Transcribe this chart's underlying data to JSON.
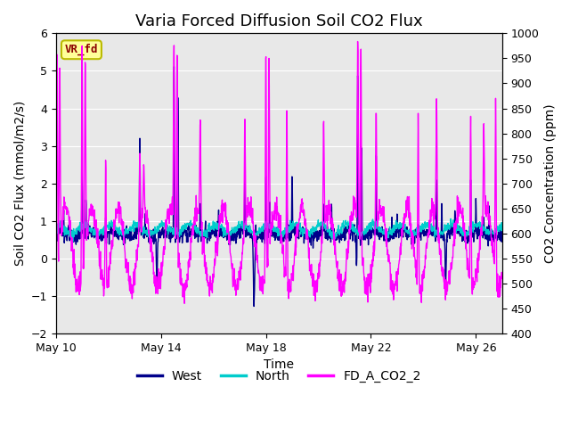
{
  "title": "Varia Forced Diffusion Soil CO2 Flux",
  "xlabel": "Time",
  "ylabel_left": "Soil CO2 Flux (mmol/m2/s)",
  "ylabel_right": "CO2 Concentration (ppm)",
  "ylim_left": [
    -2.0,
    6.0
  ],
  "ylim_right": [
    400,
    1000
  ],
  "yticks_left": [
    -2.0,
    -1.0,
    0.0,
    1.0,
    2.0,
    3.0,
    4.0,
    5.0,
    6.0
  ],
  "yticks_right": [
    400,
    450,
    500,
    550,
    600,
    650,
    700,
    750,
    800,
    850,
    900,
    950,
    1000
  ],
  "xtick_labels": [
    "May 10",
    "May 14",
    "May 18",
    "May 22",
    "May 26"
  ],
  "xtick_positions": [
    0,
    4,
    8,
    12,
    16
  ],
  "color_west": "#00008B",
  "color_north": "#00CCCC",
  "color_co2": "#FF00FF",
  "bg_color": "#E8E8E8",
  "label_box_text": "VR_fd",
  "label_box_facecolor": "#FFFF99",
  "label_box_edgecolor": "#BBBB00",
  "label_box_textcolor": "#8B0000",
  "legend_labels": [
    "West",
    "North",
    "FD_A_CO2_2"
  ],
  "title_fontsize": 13,
  "axis_label_fontsize": 10,
  "tick_fontsize": 9,
  "legend_fontsize": 10,
  "lw_west": 1.0,
  "lw_north": 1.0,
  "lw_co2": 1.0,
  "n_points": 1632,
  "t_total_days": 17.0
}
